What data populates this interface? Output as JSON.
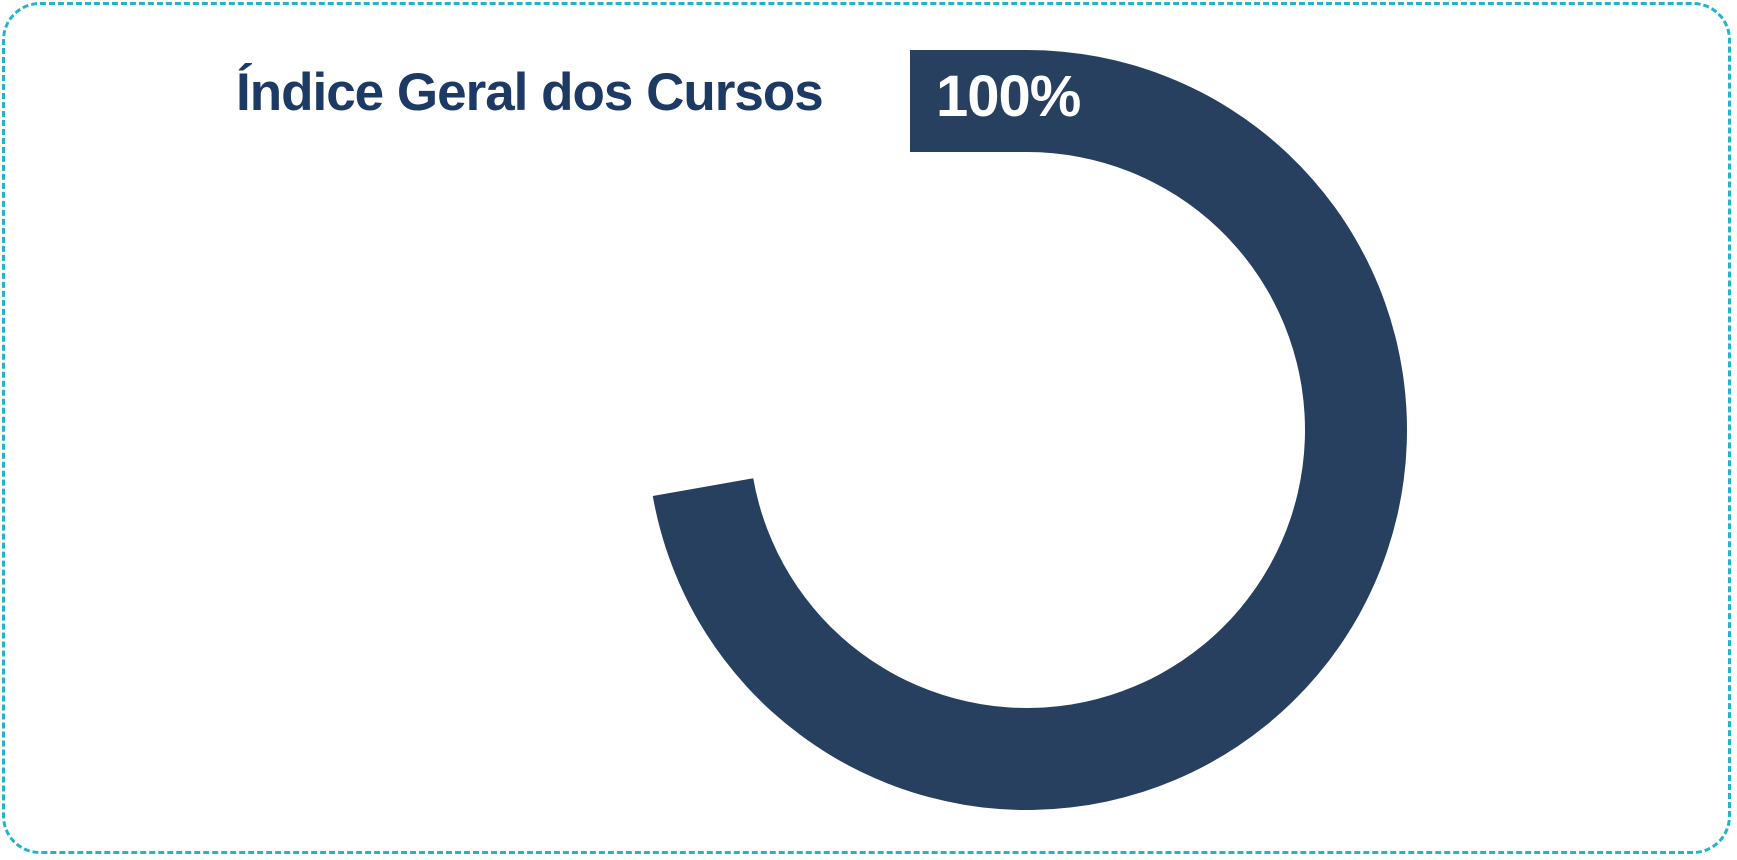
{
  "chart_data": {
    "type": "gauge",
    "title": "Índice Geral dos Cursos",
    "value": 100,
    "value_label": "100%",
    "range": [
      0,
      100
    ],
    "colors": {
      "arc": "#27405f",
      "title": "#1c3a63",
      "value_text": "#ffffff",
      "frame": "#22b5c9"
    }
  }
}
